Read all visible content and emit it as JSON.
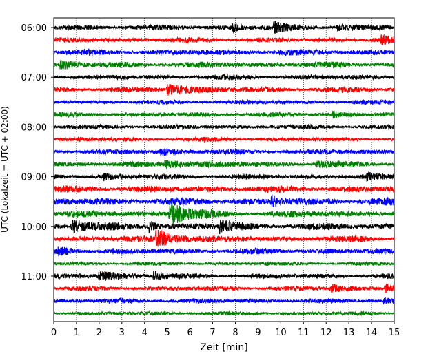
{
  "chart_data": {
    "type": "line",
    "title": "",
    "xlabel": "Zeit  [min]",
    "ylabel": "UTC (Lokalzeit = UTC + 02:00)",
    "xlim": [
      0,
      15
    ],
    "x_ticks": [
      "0",
      "1",
      "2",
      "3",
      "4",
      "5",
      "6",
      "7",
      "8",
      "9",
      "10",
      "11",
      "12",
      "13",
      "14",
      "15"
    ],
    "y_ticks": [
      "06:00",
      "07:00",
      "08:00",
      "09:00",
      "10:00",
      "11:00"
    ],
    "grid": "vertical-dotted",
    "trace_colors": [
      "#000000",
      "#ff0000",
      "#0000ff",
      "#008000"
    ],
    "traces": [
      {
        "start": "06:00",
        "color": "#000000",
        "amplitude": 0.35,
        "events": [
          {
            "t": 7.9,
            "amp": 0.7,
            "dur": 0.2
          },
          {
            "t": 9.7,
            "amp": 0.8,
            "dur": 0.5
          },
          {
            "t": 12.5,
            "amp": 0.55,
            "dur": 0.4
          }
        ]
      },
      {
        "start": "06:15",
        "color": "#ff0000",
        "amplitude": 0.35,
        "events": [
          {
            "t": 14.4,
            "amp": 0.6,
            "dur": 0.4
          }
        ]
      },
      {
        "start": "06:30",
        "color": "#0000ff",
        "amplitude": 0.4,
        "events": []
      },
      {
        "start": "06:45",
        "color": "#008000",
        "amplitude": 0.4,
        "events": [
          {
            "t": 0.3,
            "amp": 0.6,
            "dur": 0.6
          }
        ]
      },
      {
        "start": "07:00",
        "color": "#000000",
        "amplitude": 0.35,
        "events": []
      },
      {
        "start": "07:15",
        "color": "#ff0000",
        "amplitude": 0.35,
        "events": [
          {
            "t": 5.0,
            "amp": 0.8,
            "dur": 1.0
          }
        ]
      },
      {
        "start": "07:30",
        "color": "#0000ff",
        "amplitude": 0.3,
        "events": []
      },
      {
        "start": "07:45",
        "color": "#008000",
        "amplitude": 0.3,
        "events": [
          {
            "t": 12.3,
            "amp": 0.5,
            "dur": 0.4
          }
        ]
      },
      {
        "start": "08:00",
        "color": "#000000",
        "amplitude": 0.3,
        "events": []
      },
      {
        "start": "08:15",
        "color": "#ff0000",
        "amplitude": 0.3,
        "events": []
      },
      {
        "start": "08:30",
        "color": "#0000ff",
        "amplitude": 0.35,
        "events": [
          {
            "t": 4.7,
            "amp": 0.5,
            "dur": 0.4
          }
        ]
      },
      {
        "start": "08:45",
        "color": "#008000",
        "amplitude": 0.35,
        "events": [
          {
            "t": 4.9,
            "amp": 0.6,
            "dur": 1.2
          },
          {
            "t": 11.6,
            "amp": 0.45,
            "dur": 0.6
          }
        ]
      },
      {
        "start": "09:00",
        "color": "#000000",
        "amplitude": 0.35,
        "events": [
          {
            "t": 2.2,
            "amp": 0.5,
            "dur": 0.3
          },
          {
            "t": 13.8,
            "amp": 0.5,
            "dur": 0.3
          }
        ]
      },
      {
        "start": "09:15",
        "color": "#ff0000",
        "amplitude": 0.45,
        "events": []
      },
      {
        "start": "09:30",
        "color": "#0000ff",
        "amplitude": 0.5,
        "events": [
          {
            "t": 9.6,
            "amp": 0.8,
            "dur": 0.3
          }
        ]
      },
      {
        "start": "09:45",
        "color": "#008000",
        "amplitude": 0.45,
        "events": [
          {
            "t": 5.1,
            "amp": 2.0,
            "dur": 0.7
          }
        ]
      },
      {
        "start": "10:00",
        "color": "#000000",
        "amplitude": 0.45,
        "events": [
          {
            "t": 0.8,
            "amp": 1.0,
            "dur": 0.7
          },
          {
            "t": 4.2,
            "amp": 0.9,
            "dur": 0.3
          },
          {
            "t": 7.3,
            "amp": 0.9,
            "dur": 0.6
          }
        ]
      },
      {
        "start": "10:15",
        "color": "#ff0000",
        "amplitude": 0.4,
        "events": [
          {
            "t": 4.5,
            "amp": 1.3,
            "dur": 0.9
          }
        ]
      },
      {
        "start": "10:30",
        "color": "#0000ff",
        "amplitude": 0.4,
        "events": [
          {
            "t": 0.2,
            "amp": 0.5,
            "dur": 0.6
          }
        ]
      },
      {
        "start": "10:45",
        "color": "#008000",
        "amplitude": 0.25,
        "events": []
      },
      {
        "start": "11:00",
        "color": "#000000",
        "amplitude": 0.35,
        "events": [
          {
            "t": 2.0,
            "amp": 0.6,
            "dur": 1.0
          },
          {
            "t": 4.4,
            "amp": 0.9,
            "dur": 0.3
          }
        ]
      },
      {
        "start": "11:15",
        "color": "#ff0000",
        "amplitude": 0.3,
        "events": [
          {
            "t": 12.2,
            "amp": 0.7,
            "dur": 0.5
          },
          {
            "t": 14.6,
            "amp": 0.8,
            "dur": 0.5
          }
        ]
      },
      {
        "start": "11:30",
        "color": "#0000ff",
        "amplitude": 0.3,
        "events": [
          {
            "t": 14.5,
            "amp": 0.5,
            "dur": 0.3
          }
        ]
      },
      {
        "start": "11:45",
        "color": "#008000",
        "amplitude": 0.25,
        "events": []
      }
    ]
  }
}
